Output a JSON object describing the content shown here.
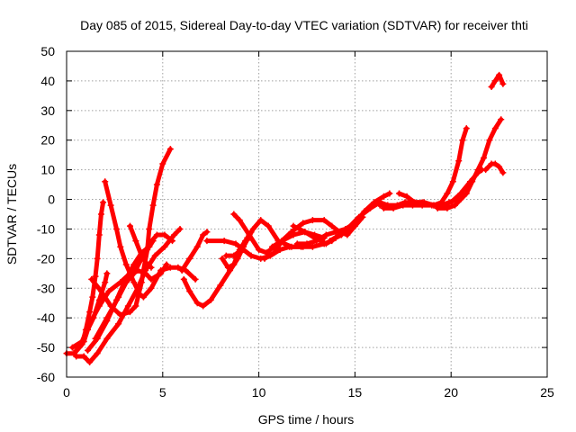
{
  "chart_data": {
    "type": "line",
    "title": "Day 085 of 2015, Sidereal Day-to-day VTEC variation (SDTVAR) for receiver thti",
    "xlabel": "GPS time / hours",
    "ylabel": "SDTVAR / TECUs",
    "xlim": [
      0,
      25
    ],
    "ylim": [
      -60,
      50
    ],
    "xticks": [
      0,
      5,
      10,
      15,
      20,
      25
    ],
    "yticks": [
      -60,
      -50,
      -40,
      -30,
      -20,
      -10,
      0,
      10,
      20,
      30,
      40,
      50
    ],
    "grid": true,
    "legend": "none",
    "marker": "plus",
    "color": "#ff0000",
    "series": [
      {
        "values": [
          [
            0.0,
            -52
          ],
          [
            0.4,
            -52
          ],
          [
            0.8,
            -49
          ],
          [
            1.0,
            -44
          ],
          [
            1.2,
            -38
          ],
          [
            1.35,
            -33
          ],
          [
            1.5,
            -26
          ],
          [
            1.6,
            -20
          ],
          [
            1.7,
            -12
          ],
          [
            1.8,
            -5
          ],
          [
            1.9,
            -1
          ]
        ]
      },
      {
        "values": [
          [
            0.3,
            -50
          ],
          [
            0.8,
            -48
          ],
          [
            1.2,
            -42
          ],
          [
            1.7,
            -36
          ],
          [
            2.2,
            -31
          ],
          [
            2.8,
            -28
          ],
          [
            3.3,
            -25
          ],
          [
            3.7,
            -24
          ],
          [
            4.1,
            -25
          ],
          [
            4.4,
            -27
          ],
          [
            4.9,
            -25
          ],
          [
            5.2,
            -22
          ]
        ]
      },
      {
        "values": [
          [
            0.5,
            -51
          ],
          [
            0.9,
            -48
          ],
          [
            1.1,
            -44
          ],
          [
            1.4,
            -40
          ],
          [
            1.7,
            -34
          ],
          [
            2.0,
            -28
          ],
          [
            2.1,
            -25
          ]
        ]
      },
      {
        "values": [
          [
            2.0,
            6
          ],
          [
            2.3,
            -2
          ],
          [
            2.6,
            -10
          ],
          [
            2.8,
            -16
          ],
          [
            3.1,
            -22
          ],
          [
            3.5,
            -28
          ],
          [
            3.8,
            -32
          ],
          [
            4.0,
            -33
          ],
          [
            4.4,
            -30
          ],
          [
            4.9,
            -24
          ],
          [
            5.4,
            -23
          ],
          [
            5.8,
            -23
          ],
          [
            6.2,
            -24
          ],
          [
            6.7,
            -27
          ]
        ]
      },
      {
        "values": [
          [
            1.3,
            -27
          ],
          [
            1.8,
            -31
          ],
          [
            2.3,
            -36
          ],
          [
            2.8,
            -39
          ],
          [
            3.3,
            -38
          ],
          [
            3.6,
            -36
          ],
          [
            3.9,
            -28
          ],
          [
            4.0,
            -24
          ],
          [
            4.2,
            -17
          ],
          [
            4.3,
            -10
          ],
          [
            4.5,
            -2
          ],
          [
            4.7,
            5
          ],
          [
            5.0,
            12
          ],
          [
            5.4,
            17
          ]
        ]
      },
      {
        "values": [
          [
            0.5,
            -53
          ],
          [
            0.9,
            -53
          ],
          [
            1.2,
            -55
          ],
          [
            1.6,
            -52
          ],
          [
            2.1,
            -47
          ],
          [
            2.7,
            -42
          ],
          [
            3.2,
            -36
          ],
          [
            3.7,
            -30
          ],
          [
            4.1,
            -24
          ],
          [
            4.6,
            -19
          ],
          [
            5.1,
            -16
          ],
          [
            5.6,
            -12
          ],
          [
            5.9,
            -10
          ]
        ]
      },
      {
        "values": [
          [
            1.5,
            -47
          ],
          [
            2.1,
            -40
          ],
          [
            2.7,
            -33
          ],
          [
            3.1,
            -28
          ],
          [
            3.5,
            -25
          ],
          [
            3.9,
            -20
          ],
          [
            4.3,
            -15
          ],
          [
            4.7,
            -12
          ],
          [
            5.1,
            -12
          ],
          [
            5.5,
            -14
          ]
        ]
      },
      {
        "values": [
          [
            1.1,
            -51
          ],
          [
            1.6,
            -47
          ],
          [
            2.1,
            -41
          ],
          [
            2.6,
            -34
          ],
          [
            3.0,
            -28
          ],
          [
            3.5,
            -22
          ],
          [
            3.9,
            -18
          ],
          [
            4.3,
            -16
          ],
          [
            4.5,
            -14
          ]
        ]
      },
      {
        "values": [
          [
            3.3,
            -9
          ],
          [
            3.6,
            -14
          ],
          [
            3.9,
            -19
          ],
          [
            4.2,
            -22
          ],
          [
            4.4,
            -23
          ]
        ]
      },
      {
        "values": [
          [
            6.1,
            -27
          ],
          [
            6.4,
            -31
          ],
          [
            6.8,
            -35
          ],
          [
            7.1,
            -36
          ],
          [
            7.5,
            -34
          ],
          [
            8.0,
            -29
          ],
          [
            8.5,
            -24
          ],
          [
            8.9,
            -20
          ],
          [
            9.2,
            -16
          ],
          [
            9.7,
            -10
          ],
          [
            10.1,
            -7
          ],
          [
            10.5,
            -9
          ],
          [
            11.0,
            -14
          ],
          [
            11.7,
            -16
          ],
          [
            12.3,
            -16
          ]
        ]
      },
      {
        "values": [
          [
            6.0,
            -24
          ],
          [
            6.4,
            -20
          ],
          [
            6.8,
            -16
          ],
          [
            7.1,
            -12
          ],
          [
            7.3,
            -11
          ]
        ]
      },
      {
        "values": [
          [
            7.3,
            -14
          ],
          [
            8.2,
            -14
          ],
          [
            8.8,
            -15
          ],
          [
            9.2,
            -17
          ],
          [
            9.6,
            -19
          ],
          [
            10.1,
            -20
          ],
          [
            10.6,
            -19
          ],
          [
            11.1,
            -17
          ],
          [
            11.6,
            -16
          ],
          [
            12.2,
            -16
          ],
          [
            12.8,
            -16
          ],
          [
            13.4,
            -15
          ],
          [
            13.8,
            -14
          ]
        ]
      },
      {
        "values": [
          [
            8.1,
            -20
          ],
          [
            8.4,
            -23
          ],
          [
            8.7,
            -22
          ],
          [
            9.0,
            -17
          ],
          [
            9.3,
            -14
          ],
          [
            9.5,
            -13
          ]
        ]
      },
      {
        "values": [
          [
            8.3,
            -19
          ],
          [
            8.7,
            -19
          ],
          [
            9.1,
            -17
          ],
          [
            9.4,
            -13
          ],
          [
            9.6,
            -11
          ]
        ]
      },
      {
        "values": [
          [
            8.7,
            -5
          ],
          [
            9.0,
            -7
          ],
          [
            9.5,
            -12
          ],
          [
            10.0,
            -17
          ],
          [
            10.4,
            -18
          ],
          [
            10.8,
            -16
          ],
          [
            11.2,
            -14
          ],
          [
            11.6,
            -12
          ]
        ]
      },
      {
        "values": [
          [
            10.3,
            -20
          ],
          [
            10.8,
            -18
          ],
          [
            11.2,
            -14
          ],
          [
            11.7,
            -11
          ],
          [
            12.3,
            -8
          ],
          [
            12.8,
            -7
          ],
          [
            13.4,
            -7
          ],
          [
            13.8,
            -9
          ],
          [
            14.2,
            -11
          ],
          [
            14.6,
            -12
          ],
          [
            15.0,
            -9
          ],
          [
            15.4,
            -6
          ]
        ]
      },
      {
        "values": [
          [
            10.7,
            -16
          ],
          [
            11.2,
            -14
          ],
          [
            11.8,
            -12
          ],
          [
            12.4,
            -11
          ],
          [
            12.9,
            -12
          ],
          [
            13.4,
            -13
          ]
        ]
      },
      {
        "values": [
          [
            11.8,
            -9
          ],
          [
            12.4,
            -11
          ],
          [
            12.9,
            -13
          ],
          [
            13.5,
            -15
          ],
          [
            14.0,
            -13
          ],
          [
            14.3,
            -12
          ]
        ]
      },
      {
        "values": [
          [
            12.0,
            -15
          ],
          [
            12.5,
            -15
          ],
          [
            13.0,
            -14
          ],
          [
            13.5,
            -12
          ],
          [
            14.0,
            -11
          ],
          [
            14.5,
            -10
          ],
          [
            15.0,
            -8
          ],
          [
            15.5,
            -4
          ],
          [
            16.0,
            -1
          ],
          [
            16.5,
            1
          ],
          [
            16.8,
            2
          ]
        ]
      },
      {
        "values": [
          [
            13.7,
            -14
          ],
          [
            14.2,
            -12
          ],
          [
            14.6,
            -10
          ],
          [
            15.2,
            -6
          ],
          [
            15.8,
            -3
          ],
          [
            16.3,
            -1
          ],
          [
            16.7,
            -2
          ]
        ]
      },
      {
        "values": [
          [
            16.3,
            -2
          ],
          [
            16.7,
            -2
          ],
          [
            17.2,
            -2
          ],
          [
            17.6,
            -1
          ],
          [
            18.1,
            -1
          ],
          [
            18.6,
            -1
          ],
          [
            19.1,
            -2
          ],
          [
            19.5,
            -2
          ],
          [
            19.9,
            -1
          ],
          [
            20.3,
            0
          ]
        ]
      },
      {
        "values": [
          [
            16.5,
            -3
          ],
          [
            17.0,
            -3
          ],
          [
            17.5,
            -2
          ],
          [
            18.0,
            -2
          ],
          [
            18.5,
            -2
          ],
          [
            19.0,
            -2
          ],
          [
            19.4,
            -2
          ],
          [
            19.8,
            -2
          ]
        ]
      },
      {
        "values": [
          [
            17.3,
            2
          ],
          [
            17.7,
            1
          ],
          [
            18.1,
            -1
          ],
          [
            18.5,
            -1
          ]
        ]
      },
      {
        "values": [
          [
            19.1,
            -2
          ],
          [
            19.5,
            -1
          ],
          [
            19.8,
            2
          ],
          [
            20.1,
            6
          ],
          [
            20.4,
            13
          ],
          [
            20.6,
            20
          ],
          [
            20.8,
            24
          ]
        ]
      },
      {
        "values": [
          [
            19.3,
            -3
          ],
          [
            19.8,
            -3
          ],
          [
            20.2,
            -2
          ],
          [
            20.5,
            0
          ],
          [
            20.8,
            2
          ],
          [
            21.1,
            6
          ],
          [
            21.4,
            10
          ],
          [
            21.7,
            14
          ],
          [
            22.0,
            20
          ],
          [
            22.3,
            24
          ],
          [
            22.6,
            27
          ]
        ]
      },
      {
        "values": [
          [
            20.0,
            -1
          ],
          [
            20.5,
            2
          ],
          [
            21.0,
            6
          ],
          [
            21.4,
            9
          ],
          [
            21.6,
            10
          ]
        ]
      },
      {
        "values": [
          [
            21.8,
            10
          ],
          [
            22.1,
            12
          ],
          [
            22.3,
            12
          ],
          [
            22.5,
            11
          ],
          [
            22.7,
            9
          ]
        ]
      },
      {
        "values": [
          [
            22.1,
            38
          ],
          [
            22.3,
            40
          ],
          [
            22.5,
            42
          ],
          [
            22.7,
            39
          ]
        ]
      }
    ]
  }
}
